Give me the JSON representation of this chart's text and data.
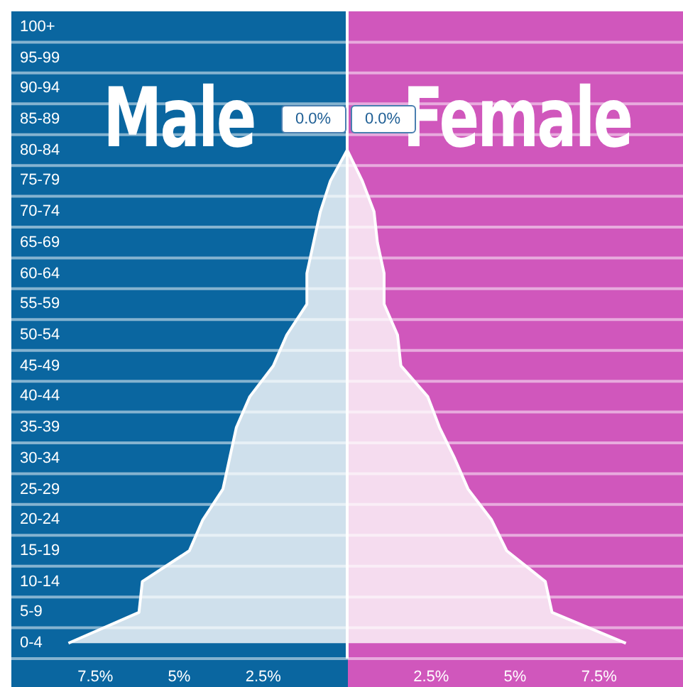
{
  "chart_data": {
    "type": "area",
    "orientation": "horizontal",
    "categories": [
      "100+",
      "95-99",
      "90-94",
      "85-89",
      "80-84",
      "75-79",
      "70-74",
      "65-69",
      "60-64",
      "55-59",
      "50-54",
      "45-49",
      "40-44",
      "35-39",
      "30-34",
      "25-29",
      "20-24",
      "15-19",
      "10-14",
      "5-9",
      "0-4"
    ],
    "series": [
      {
        "name": "Male",
        "color": "#cfe0ec",
        "values": [
          0,
          0,
          0,
          0,
          0,
          -0.5,
          -0.8,
          -1.0,
          -1.2,
          -1.2,
          -1.8,
          -2.2,
          -2.9,
          -3.3,
          -3.5,
          -3.7,
          -4.3,
          -4.7,
          -6.1,
          -6.2,
          -8.3
        ]
      },
      {
        "name": "Female",
        "color": "#f5dcef",
        "values": [
          0,
          0,
          0,
          0,
          0,
          0.45,
          0.8,
          0.9,
          1.1,
          1.1,
          1.5,
          1.6,
          2.4,
          2.75,
          3.2,
          3.6,
          4.3,
          4.75,
          5.9,
          6.1,
          8.3
        ]
      }
    ],
    "xlim": [
      -10,
      10
    ],
    "xticks": [
      {
        "value": -7.5,
        "label": "7.5%"
      },
      {
        "value": -5,
        "label": "5%"
      },
      {
        "value": -2.5,
        "label": "2.5%"
      },
      {
        "value": 2.5,
        "label": "2.5%"
      },
      {
        "value": 5,
        "label": "5%"
      },
      {
        "value": 7.5,
        "label": "7.5%"
      }
    ],
    "bands": [
      {
        "axis": "x",
        "from": -10,
        "to": 0,
        "color": "#0a66a0"
      },
      {
        "axis": "x",
        "from": 0,
        "to": 10,
        "color": "#d057bc"
      }
    ],
    "ref_lines": [
      {
        "axis": "x",
        "value": 0,
        "color": "#ffffff"
      }
    ],
    "annotations": [
      {
        "text": "0.0%",
        "x": 0,
        "y": "85-89"
      },
      {
        "text": "0.0%",
        "x": 0,
        "y": "85-89"
      }
    ],
    "grid": "y"
  }
}
